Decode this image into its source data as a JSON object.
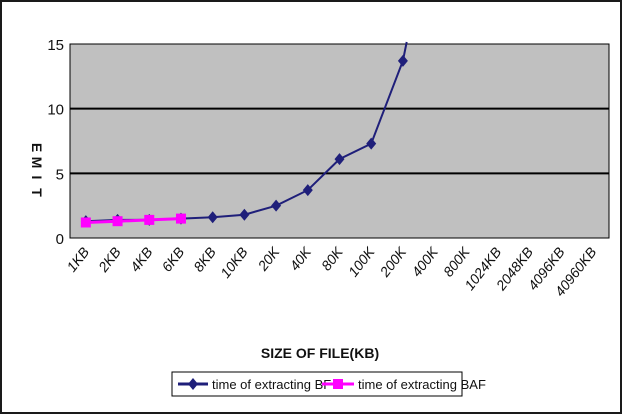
{
  "chart_data": {
    "type": "line",
    "title": "",
    "xlabel": "SIZE OF FILE(KB)",
    "ylabel": "TIME",
    "ylim": [
      0,
      15
    ],
    "yticks": [
      "0",
      "5",
      "10",
      "15"
    ],
    "grid": true,
    "legend_position": "bottom",
    "categories": [
      "1KB",
      "2KB",
      "4KB",
      "6KB",
      "8KB",
      "10KB",
      "20K",
      "40K",
      "80K",
      "100K",
      "200K",
      "400K",
      "800K",
      "1024KB",
      "2048KB",
      "4096KB",
      "40960KB"
    ],
    "series": [
      {
        "name": "time of extracting BF",
        "color": "#1f1f7a",
        "marker": "diamond",
        "values": [
          1.3,
          1.4,
          1.4,
          1.5,
          1.6,
          1.8,
          2.5,
          3.7,
          6.1,
          7.3,
          13.7,
          null,
          null,
          null,
          null,
          null,
          null
        ],
        "continues_above_max": true
      },
      {
        "name": "time of extracting BAF",
        "color": "#ff00ff",
        "marker": "square",
        "values": [
          1.2,
          1.3,
          1.4,
          1.5,
          null,
          null,
          null,
          null,
          null,
          null,
          null,
          null,
          null,
          null,
          null,
          null,
          null
        ]
      }
    ]
  }
}
